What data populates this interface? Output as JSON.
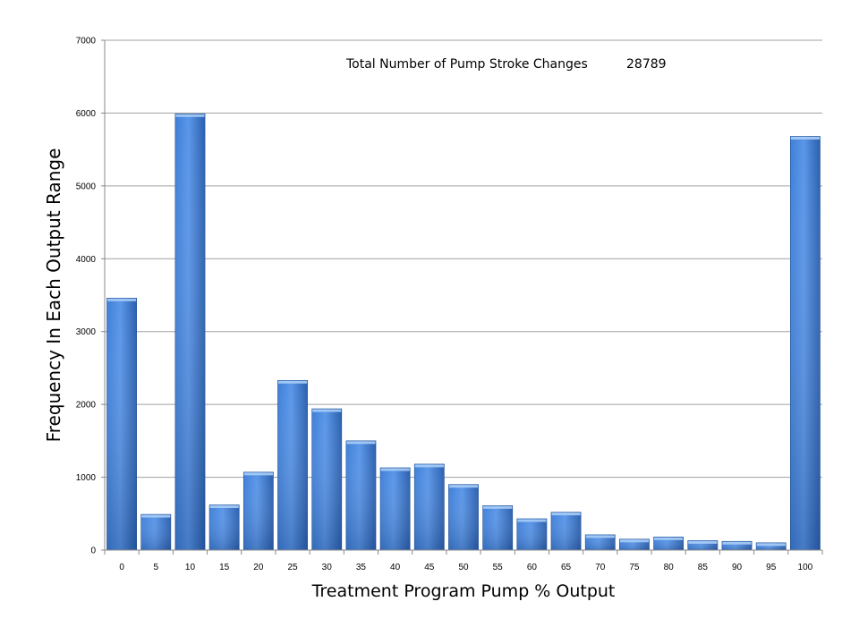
{
  "chart_data": {
    "type": "bar",
    "title": "",
    "xlabel": "Treatment Program Pump % Output",
    "ylabel": "Frequency In Each Output Range",
    "ylim": [
      0,
      7000
    ],
    "yticks": [
      0,
      1000,
      2000,
      3000,
      4000,
      5000,
      6000,
      7000
    ],
    "grid": true,
    "legend": "none",
    "categories": [
      "0",
      "5",
      "10",
      "15",
      "20",
      "25",
      "30",
      "35",
      "40",
      "45",
      "50",
      "55",
      "60",
      "65",
      "70",
      "75",
      "80",
      "85",
      "90",
      "95",
      "100"
    ],
    "values": [
      3460,
      490,
      5990,
      620,
      1070,
      2330,
      1940,
      1500,
      1130,
      1180,
      900,
      610,
      430,
      520,
      210,
      150,
      180,
      130,
      120,
      100,
      5680
    ],
    "annotation": {
      "label": "Total Number of Pump Stroke Changes",
      "value": "28789"
    },
    "colors": {
      "bar_light": "#6fa8ee",
      "bar_mid": "#3a78d4",
      "bar_dark": "#24569e",
      "gridline": "#a0a0a0"
    }
  }
}
